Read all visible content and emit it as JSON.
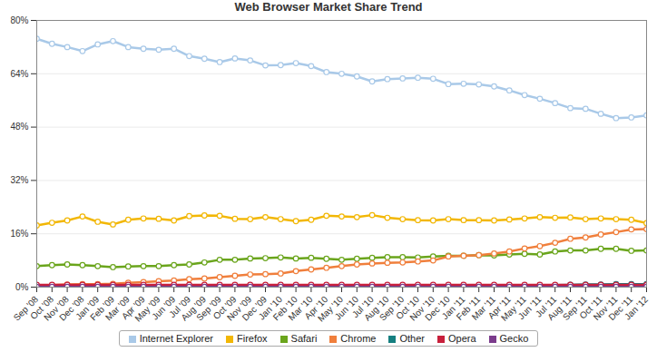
{
  "chart_data": {
    "type": "line",
    "title": "Web Browser Market Share Trend",
    "categories": [
      "Sep '08",
      "Oct '08",
      "Nov '08",
      "Dec '08",
      "Jan '09",
      "Feb '09",
      "Mar '09",
      "Apr '09",
      "May '09",
      "Jun '09",
      "Jul '09",
      "Aug '09",
      "Sep '09",
      "Oct '09",
      "Nov '09",
      "Dec '09",
      "Jan '10",
      "Feb '10",
      "Mar '10",
      "Apr '10",
      "May '10",
      "Jun '10",
      "Jul '10",
      "Aug '10",
      "Sep '10",
      "Oct '10",
      "Nov '10",
      "Dec '10",
      "Jan '11",
      "Feb '11",
      "Mar '11",
      "Apr '11",
      "May '11",
      "Jun '11",
      "Jul '11",
      "Aug '11",
      "Sep '11",
      "Oct '11",
      "Nov '11",
      "Dec '11",
      "Jan '12"
    ],
    "series": [
      {
        "name": "Internet Explorer",
        "color": "#a9c9e8",
        "values": [
          74.5,
          73,
          72,
          70.8,
          72.8,
          73.8,
          72,
          71.5,
          71.2,
          71.5,
          69.3,
          68.5,
          67.5,
          68.6,
          68,
          66.5,
          66.6,
          67.2,
          66.3,
          64.5,
          64,
          63.2,
          61.7,
          62.4,
          62.6,
          62.8,
          62.5,
          60.9,
          61,
          60.8,
          60.2,
          59,
          57.6,
          56.5,
          55.2,
          53.7,
          53.5,
          52,
          50.7,
          50.9,
          51.5
        ]
      },
      {
        "name": "Firefox",
        "color": "#f2b705",
        "values": [
          18.5,
          19.3,
          20,
          21.2,
          19.6,
          18.8,
          20.2,
          20.6,
          20.5,
          20,
          21.3,
          21.5,
          21.4,
          20.5,
          20.4,
          21,
          20.4,
          19.8,
          20.2,
          21.4,
          21.2,
          21,
          21.6,
          20.8,
          20.4,
          20.1,
          20,
          20.4,
          20.1,
          20.1,
          20,
          20.3,
          20.6,
          21,
          20.8,
          20.9,
          20.4,
          20.6,
          20.4,
          20.2,
          19.2
        ]
      },
      {
        "name": "Safari",
        "color": "#6aa51c",
        "values": [
          6.3,
          6.6,
          6.8,
          6.6,
          6.3,
          6,
          6.2,
          6.3,
          6.3,
          6.6,
          6.8,
          7.4,
          8.2,
          8.2,
          8.6,
          8.7,
          8.9,
          8.6,
          8.8,
          8.5,
          8.2,
          8.5,
          8.8,
          9,
          9,
          8.9,
          9.2,
          9.4,
          9.4,
          9.6,
          9.5,
          9.8,
          10,
          9.8,
          10.7,
          11,
          11,
          11.5,
          11.5,
          10.9,
          11
        ]
      },
      {
        "name": "Chrome",
        "color": "#f07f3c",
        "values": [
          0.4,
          0.6,
          0.8,
          0.9,
          0.9,
          1,
          1.3,
          1.5,
          1.8,
          2,
          2.4,
          2.6,
          3,
          3.4,
          3.8,
          3.9,
          4.1,
          4.8,
          5.3,
          5.8,
          6.3,
          6.8,
          7.1,
          7.3,
          7.4,
          7.7,
          8,
          9.2,
          9.4,
          9.6,
          10.1,
          10.7,
          11.6,
          12.3,
          13.3,
          14.5,
          14.9,
          15.8,
          16.5,
          17.3,
          17.4
        ]
      },
      {
        "name": "Other",
        "color": "#157f80",
        "values": [
          0.4,
          0.4,
          0.4,
          0.4,
          0.4,
          0.4,
          0.4,
          0.4,
          0.4,
          0.4,
          0.4,
          0.4,
          0.4,
          0.4,
          0.4,
          0.4,
          0.4,
          0.4,
          0.4,
          0.4,
          0.4,
          0.4,
          0.4,
          0.4,
          0.4,
          0.4,
          0.4,
          0.4,
          0.4,
          0.4,
          0.4,
          0.5,
          0.5,
          0.5,
          0.6,
          0.7,
          0.8,
          0.8,
          0.9,
          0.9,
          0.9
        ]
      },
      {
        "name": "Opera",
        "color": "#c8203c",
        "values": [
          0.7,
          0.7,
          0.7,
          0.7,
          0.7,
          0.7,
          0.7,
          0.7,
          0.7,
          0.7,
          0.7,
          0.7,
          0.7,
          0.7,
          0.7,
          0.7,
          0.7,
          0.7,
          0.7,
          0.7,
          0.7,
          0.7,
          0.7,
          0.7,
          0.7,
          0.7,
          0.7,
          0.7,
          0.7,
          0.7,
          0.7,
          0.7,
          0.7,
          0.7,
          0.7,
          0.7,
          0.7,
          0.7,
          0.7,
          0.7,
          0.7
        ]
      },
      {
        "name": "Gecko",
        "color": "#7b3b8c",
        "values": [
          0.1,
          0.1,
          0.1,
          0.1,
          0.1,
          0.1,
          0.1,
          0.1,
          0.1,
          0.1,
          0.1,
          0.1,
          0.1,
          0.1,
          0.1,
          0.1,
          0.1,
          0.1,
          0.1,
          0.1,
          0.1,
          0.1,
          0.1,
          0.1,
          0.1,
          0.1,
          0.1,
          0.1,
          0.1,
          0.1,
          0.1,
          0.1,
          0.1,
          0.1,
          0.1,
          0.1,
          0.1,
          0.1,
          0.1,
          0.1,
          0.1
        ]
      }
    ],
    "ylim": [
      0,
      80
    ],
    "yticks": [
      {
        "value": 0,
        "label": "0%"
      },
      {
        "value": 16,
        "label": "16%"
      },
      {
        "value": 32,
        "label": "32%"
      },
      {
        "value": 48,
        "label": "48%"
      },
      {
        "value": 64,
        "label": "64%"
      },
      {
        "value": 80,
        "label": "80%"
      }
    ],
    "grid": true,
    "legend": "bottom",
    "marker": "circle"
  }
}
